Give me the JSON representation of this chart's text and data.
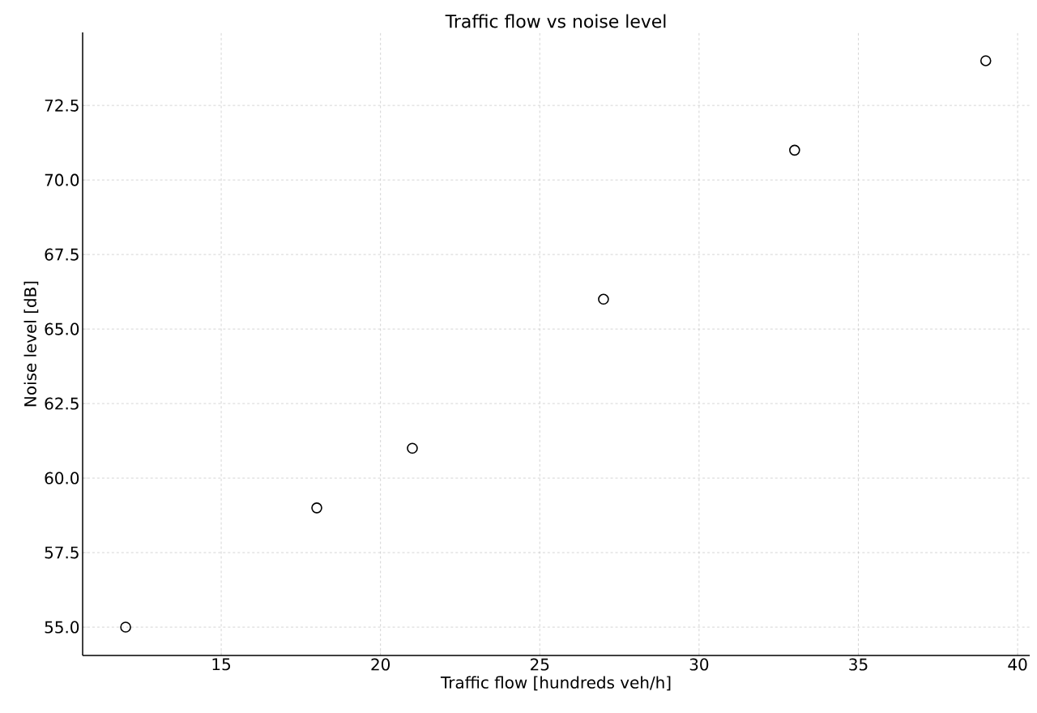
{
  "chart_data": {
    "type": "scatter",
    "title": "Traffic flow vs noise level",
    "xlabel": "Traffic flow [hundreds veh/h]",
    "ylabel": "Noise level [dB]",
    "x": [
      12,
      18,
      21,
      27,
      33,
      39
    ],
    "series": [
      {
        "color": "#000000",
        "values": [
          55,
          59,
          61,
          66,
          71,
          74
        ]
      }
    ],
    "xlim": [
      10.65,
      40.38
    ],
    "ylim": [
      54.05,
      74.95
    ],
    "xticks": [
      15,
      20,
      25,
      30,
      35,
      40
    ],
    "yticks": [
      {
        "value": 55,
        "label": "55.0"
      },
      {
        "value": 57.5,
        "label": "57.5"
      },
      {
        "value": 60,
        "label": "60.0"
      },
      {
        "value": 62.5,
        "label": "62.5"
      },
      {
        "value": 65,
        "label": "65.0"
      },
      {
        "value": 67.5,
        "label": "67.5"
      },
      {
        "value": 70,
        "label": "70.0"
      },
      {
        "value": 72.5,
        "label": "72.5"
      }
    ],
    "grid": true,
    "marker": "circle"
  }
}
